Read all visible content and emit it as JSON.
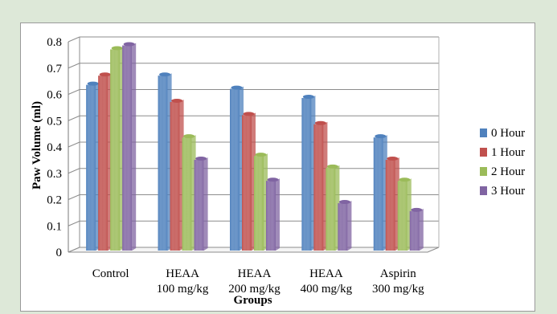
{
  "chart_data": {
    "type": "bar",
    "title": "",
    "xlabel": "Groups",
    "ylabel": "Paw Volume (ml)",
    "ylim": [
      0,
      0.8
    ],
    "yticks": [
      "0",
      "0.1",
      "0.2",
      "0.3",
      "0.4",
      "0.5",
      "0.6",
      "0.7",
      "0.8"
    ],
    "categories": [
      [
        "Control"
      ],
      [
        "HEAA",
        "100 mg/kg"
      ],
      [
        "HEAA",
        "200 mg/kg"
      ],
      [
        "HEAA",
        "400 mg/kg"
      ],
      [
        "Aspirin",
        "300 mg/kg"
      ]
    ],
    "series": [
      {
        "name": "0 Hour",
        "color": "#4f81bd",
        "values": [
          0.63,
          0.665,
          0.615,
          0.58,
          0.43
        ]
      },
      {
        "name": "1 Hour",
        "color": "#c0504d",
        "values": [
          0.665,
          0.565,
          0.515,
          0.48,
          0.345
        ]
      },
      {
        "name": "2 Hour",
        "color": "#9bbb59",
        "values": [
          0.765,
          0.43,
          0.36,
          0.315,
          0.265
        ]
      },
      {
        "name": "3 Hour",
        "color": "#8064a2",
        "values": [
          0.78,
          0.345,
          0.265,
          0.18,
          0.15
        ]
      }
    ],
    "grid": true,
    "legend_position": "right"
  }
}
